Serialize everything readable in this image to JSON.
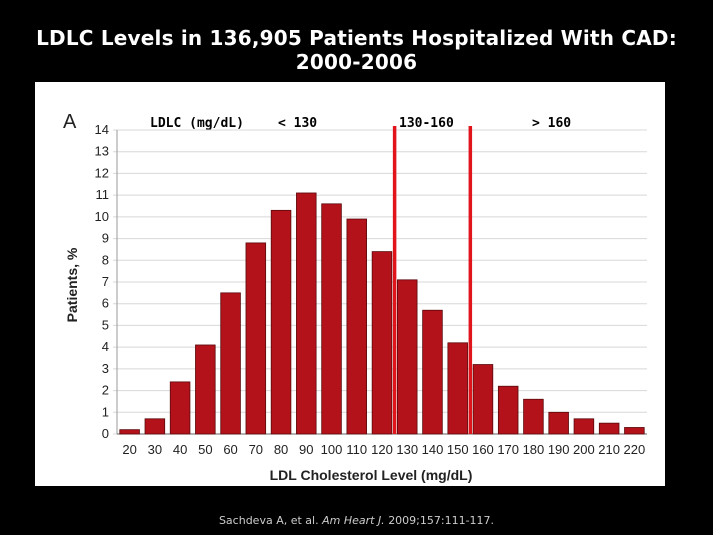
{
  "title_line1": "LDLC Levels in 136,905 Patients Hospitalized With CAD:",
  "title_line2": "2000-2006",
  "citation": {
    "authors": "Sachdeva A, et al.",
    "journal": "Am Heart J.",
    "ref": "2009;157:111-117."
  },
  "chart_data": {
    "type": "bar",
    "panel_label": "A",
    "categories": [
      "20",
      "30",
      "40",
      "50",
      "60",
      "70",
      "80",
      "90",
      "100",
      "110",
      "120",
      "130",
      "140",
      "150",
      "160",
      "170",
      "180",
      "190",
      "200",
      "210",
      "220"
    ],
    "values": [
      0.2,
      0.7,
      2.4,
      4.1,
      6.5,
      8.8,
      10.3,
      11.1,
      10.6,
      9.9,
      8.4,
      7.1,
      5.7,
      4.2,
      3.2,
      2.2,
      1.6,
      1.0,
      0.7,
      0.5,
      0.3
    ],
    "xlabel": "LDL Cholesterol Level (mg/dL)",
    "ylabel": "Patients, %",
    "ylim": [
      0,
      14
    ],
    "yticks": [
      0,
      1,
      2,
      3,
      4,
      5,
      6,
      7,
      8,
      9,
      10,
      11,
      12,
      13,
      14
    ],
    "grid": "horizontal",
    "bar_color": "#b3121a",
    "cutoff_color": "#e0141a",
    "cutoff_lines_at": [
      125,
      155
    ],
    "band_header": "LDLC (mg/dL)",
    "bands": [
      "< 130",
      "130-160",
      "> 160"
    ]
  }
}
